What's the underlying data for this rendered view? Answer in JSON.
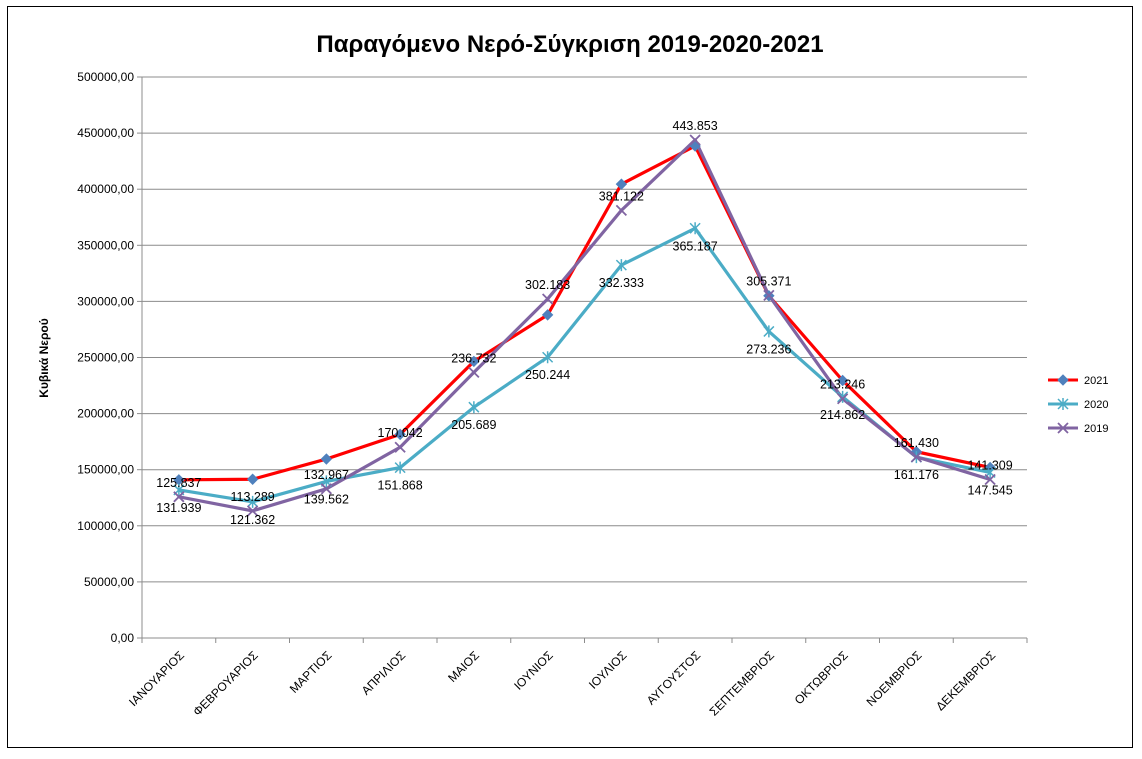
{
  "chart_data": {
    "type": "line",
    "title": "Παραγόμενο Νερό-Σύγκριση 2019-2020-2021",
    "ylabel": "Κυβικά Νερού",
    "xlabel": "",
    "ylim": [
      0,
      500000
    ],
    "yticks": [
      0,
      50000,
      100000,
      150000,
      200000,
      250000,
      300000,
      350000,
      400000,
      450000,
      500000
    ],
    "ytick_labels": [
      "0,00",
      "50000,00",
      "100000,00",
      "150000,00",
      "200000,00",
      "250000,00",
      "300000,00",
      "350000,00",
      "400000,00",
      "450000,00",
      "500000,00"
    ],
    "grid": true,
    "legend_position": "right",
    "categories": [
      "ΙΑΝΟΥΑΡΙΟΣ",
      "ΦΕΒΡΟΥΑΡΙΟΣ",
      "ΜΑΡΤΙΟΣ",
      "ΑΠΡΙΛΙΟΣ",
      "ΜΑΙΟΣ",
      "ΙΟΥΝΙΟΣ",
      "ΙΟΥΛΙΟΣ",
      "ΑΥΓΟΥΣΤΟΣ",
      "ΣΕΠΤΕΜΒΡΙΟΣ",
      "ΟΚΤΩΒΡΙΟΣ",
      "ΝΟΕΜΒΡΙΟΣ",
      "ΔΕΚΕΜΒΡΙΟΣ"
    ],
    "series": [
      {
        "name": "2021",
        "color": "#ff0000",
        "marker": "diamond",
        "values": [
          141000,
          141500,
          159500,
          181500,
          246500,
          288000,
          404500,
          438500,
          305000,
          229500,
          166000,
          152000
        ]
      },
      {
        "name": "2020",
        "color": "#4bacc6",
        "marker": "star",
        "values": [
          131939,
          121362,
          139562,
          151868,
          205689,
          250244,
          332333,
          365187,
          273236,
          214862,
          161176,
          147545
        ]
      },
      {
        "name": "2019",
        "color": "#8064a2",
        "marker": "x",
        "values": [
          125837,
          113289,
          132967,
          170042,
          236732,
          302183,
          381122,
          443853,
          305371,
          213246,
          161430,
          141309
        ]
      }
    ],
    "data_labels": [
      {
        "text": "125.837",
        "category": 0,
        "value": 125837,
        "pos": "above"
      },
      {
        "text": "131.939",
        "category": 0,
        "value": 131939,
        "pos": "below"
      },
      {
        "text": "113.289",
        "category": 1,
        "value": 113289,
        "pos": "above"
      },
      {
        "text": "121.362",
        "category": 1,
        "value": 121362,
        "pos": "below"
      },
      {
        "text": "132.967",
        "category": 2,
        "value": 132967,
        "pos": "above"
      },
      {
        "text": "139.562",
        "category": 2,
        "value": 139562,
        "pos": "below"
      },
      {
        "text": "170.042",
        "category": 3,
        "value": 170042,
        "pos": "above"
      },
      {
        "text": "151.868",
        "category": 3,
        "value": 151868,
        "pos": "below"
      },
      {
        "text": "236.732",
        "category": 4,
        "value": 236732,
        "pos": "above"
      },
      {
        "text": "205.689",
        "category": 4,
        "value": 205689,
        "pos": "below"
      },
      {
        "text": "302.183",
        "category": 5,
        "value": 302183,
        "pos": "above"
      },
      {
        "text": "250.244",
        "category": 5,
        "value": 250244,
        "pos": "below"
      },
      {
        "text": "381.122",
        "category": 6,
        "value": 381122,
        "pos": "above"
      },
      {
        "text": "332.333",
        "category": 6,
        "value": 332333,
        "pos": "below"
      },
      {
        "text": "443.853",
        "category": 7,
        "value": 443853,
        "pos": "above"
      },
      {
        "text": "365.187",
        "category": 7,
        "value": 365187,
        "pos": "below"
      },
      {
        "text": "305.371",
        "category": 8,
        "value": 305371,
        "pos": "above"
      },
      {
        "text": "273.236",
        "category": 8,
        "value": 273236,
        "pos": "below"
      },
      {
        "text": "213.246",
        "category": 9,
        "value": 213246,
        "pos": "above"
      },
      {
        "text": "214.862",
        "category": 9,
        "value": 214862,
        "pos": "below"
      },
      {
        "text": "161.430",
        "category": 10,
        "value": 161430,
        "pos": "above"
      },
      {
        "text": "161.176",
        "category": 10,
        "value": 161176,
        "pos": "below"
      },
      {
        "text": "141.309",
        "category": 11,
        "value": 141309,
        "pos": "above"
      },
      {
        "text": "147.545",
        "category": 11,
        "value": 147545,
        "pos": "below"
      }
    ]
  }
}
